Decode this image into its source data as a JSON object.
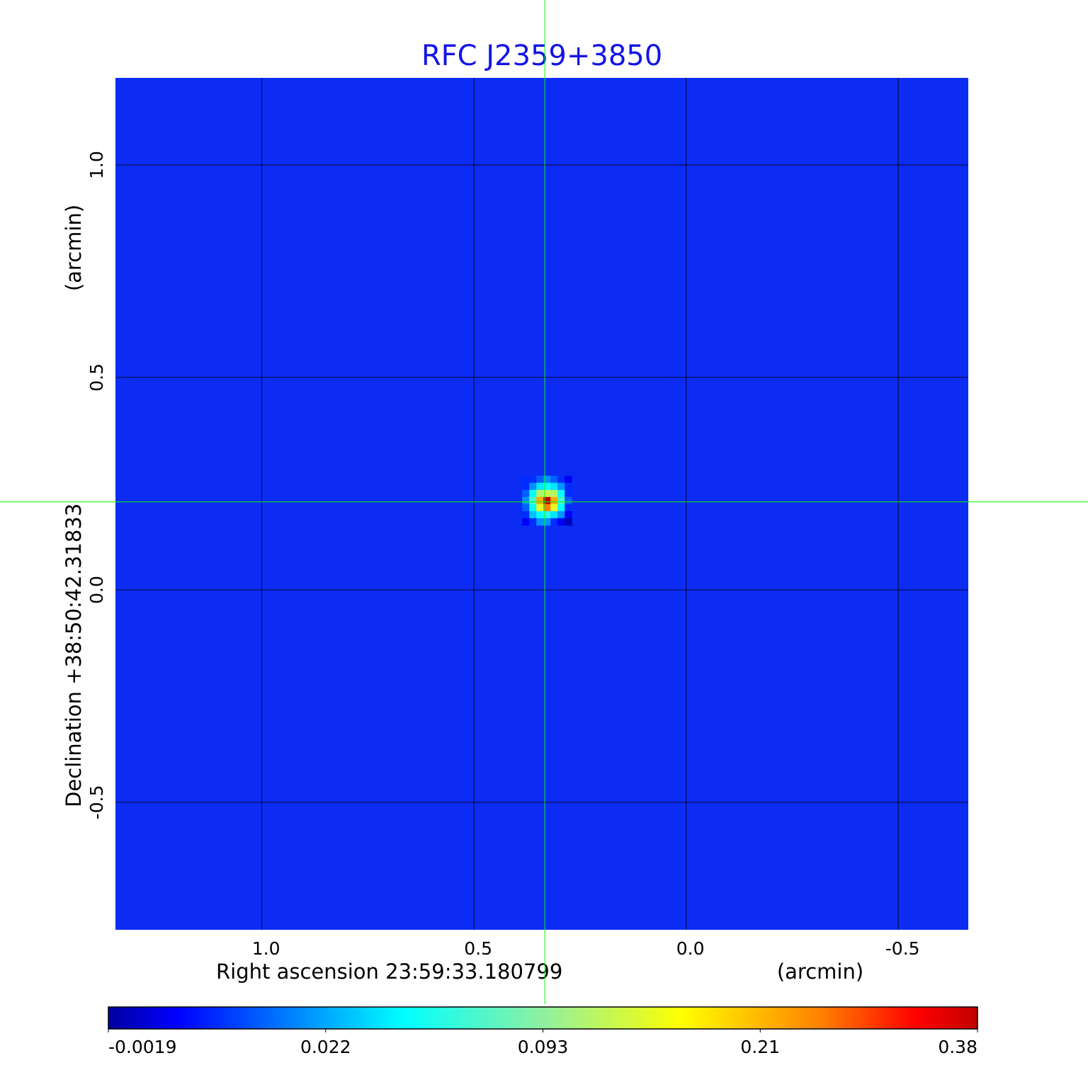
{
  "chart_data": {
    "type": "heatmap",
    "title": "RFC J2359+3850",
    "xlabel": "Right ascension  23:59:33.180799",
    "xunit": "(arcmin)",
    "ylabel": "Declination  +38:50:42.31833",
    "yunit": "(arcmin)",
    "xlim": [
      1.345,
      -0.665
    ],
    "ylim": [
      -0.8,
      1.205
    ],
    "xticks": [
      1.0,
      0.5,
      0.0,
      -0.5
    ],
    "xtick_labels": [
      "1.0",
      "0.5",
      "0.0",
      "-0.5"
    ],
    "yticks": [
      1.0,
      0.5,
      0.0,
      -0.5
    ],
    "ytick_labels": [
      "1.0",
      "0.5",
      "0.0",
      "-0.5"
    ],
    "grid": true,
    "crosshair": {
      "x": 0.333,
      "y": 0.207,
      "color": "#00ff00"
    },
    "colormap": "jet",
    "background_value": 0.004,
    "source_center": {
      "x": 0.333,
      "y": 0.207
    },
    "source_pixels": [
      [
        0.01,
        0.01,
        0.015,
        0.02,
        0.015,
        0.01,
        0.005
      ],
      [
        0.01,
        0.02,
        0.04,
        0.05,
        0.04,
        0.02,
        0.01
      ],
      [
        0.015,
        0.05,
        0.12,
        0.13,
        0.12,
        0.05,
        0.01
      ],
      [
        0.02,
        0.07,
        0.22,
        0.38,
        0.22,
        0.07,
        0.015
      ],
      [
        0.015,
        0.05,
        0.15,
        0.26,
        0.15,
        0.05,
        0.01
      ],
      [
        0.01,
        0.03,
        0.05,
        0.06,
        0.04,
        0.02,
        0.005
      ],
      [
        0.005,
        0.01,
        0.02,
        0.02,
        0.01,
        0.005,
        0.0
      ]
    ],
    "colorbar": {
      "ticks": [
        -0.0019,
        0.022,
        0.093,
        0.21,
        0.38
      ],
      "tick_labels": [
        "-0.0019",
        "0.022",
        "0.093",
        "0.21",
        "0.38"
      ]
    },
    "colors": {
      "title": "#1414e6",
      "grid": "#000000",
      "crosshair": "#00ff00"
    }
  }
}
